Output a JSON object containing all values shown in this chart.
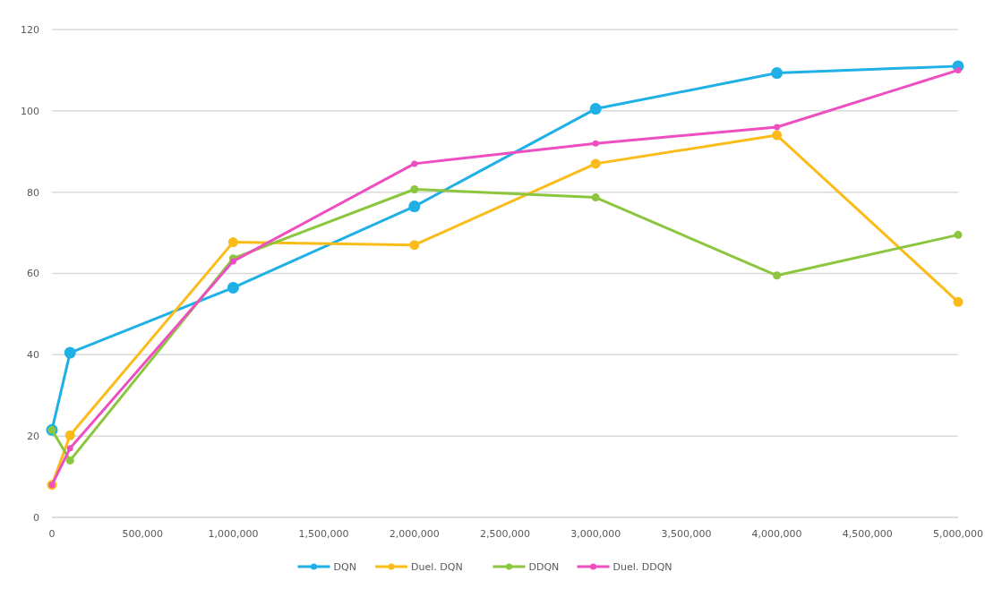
{
  "chart_data": {
    "type": "line",
    "x": [
      0,
      100000,
      1000000,
      2000000,
      3000000,
      4000000,
      5000000
    ],
    "series": [
      {
        "name": "DQN",
        "color": "#1fb0e6",
        "values": [
          21.5,
          40.5,
          56.5,
          76.5,
          100.5,
          109.3,
          111
        ]
      },
      {
        "name": "Duel. DQN",
        "color": "#fbbc1a",
        "values": [
          8,
          20.2,
          67.7,
          67,
          87,
          94,
          53
        ]
      },
      {
        "name": "DDQN",
        "color": "#8cc63e",
        "values": [
          21.5,
          14,
          63.7,
          80.7,
          78.7,
          59.5,
          69.5
        ]
      },
      {
        "name": "Duel. DDQN",
        "color": "#ee4fc0",
        "values": [
          8,
          17,
          63,
          87,
          92,
          96,
          110
        ]
      }
    ],
    "xlim": [
      0,
      5000000
    ],
    "xticks": [
      {
        "value": 0,
        "label": "0"
      },
      {
        "value": 500000,
        "label": "500,000"
      },
      {
        "value": 1000000,
        "label": "1,000,000"
      },
      {
        "value": 1500000,
        "label": "1,500,000"
      },
      {
        "value": 2000000,
        "label": "2,000,000"
      },
      {
        "value": 2500000,
        "label": "2,500,000"
      },
      {
        "value": 3000000,
        "label": "3,000,000"
      },
      {
        "value": 3500000,
        "label": "3,500,000"
      },
      {
        "value": 4000000,
        "label": "4,000,000"
      },
      {
        "value": 4500000,
        "label": "4,500,000"
      },
      {
        "value": 5000000,
        "label": "5,000,000"
      }
    ],
    "ylim": [
      0,
      120
    ],
    "yticks": [
      0,
      20,
      40,
      60,
      80,
      100,
      120
    ],
    "grid": "y",
    "legend": "bottom",
    "marker": "circle",
    "line_style": "solid"
  }
}
